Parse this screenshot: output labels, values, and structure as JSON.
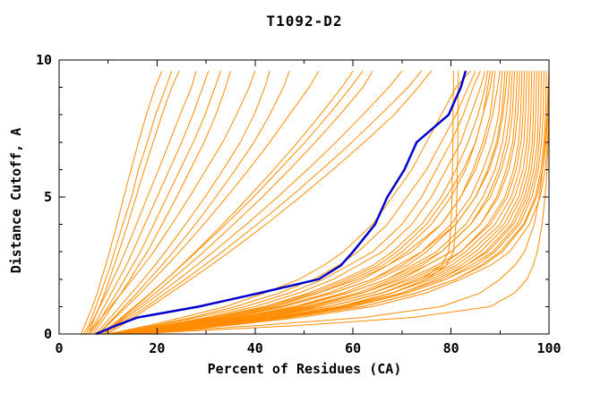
{
  "chart_data": {
    "type": "line",
    "title": "T1092-D2",
    "xlabel": "Percent of Residues (CA)",
    "ylabel": "Distance Cutoff, A",
    "xlim": [
      0,
      100
    ],
    "ylim": [
      0,
      10
    ],
    "x_major_ticks": [
      0,
      20,
      40,
      60,
      80,
      100
    ],
    "x_minor_step": 10,
    "y_major_ticks": [
      0,
      5,
      10
    ],
    "y_minor_step": 1,
    "grid": false,
    "legend": "none",
    "model_color": "#ff8c00",
    "highlight_color": "#0000cc",
    "frame_color": "#000000",
    "cutoff_levels": [
      0,
      0.3,
      0.6,
      1,
      1.5,
      2,
      2.5,
      3,
      4,
      5,
      6,
      7,
      8,
      9,
      9.6
    ],
    "highlight_curve": [
      7.5,
      11.5,
      16,
      28.5,
      41,
      53,
      57.5,
      60,
      64.5,
      67,
      70.5,
      73,
      79.5,
      82,
      83
    ],
    "model_curves": [
      [
        4.5,
        5.2,
        5.9,
        6.8,
        7.8,
        8.6,
        9.5,
        10.3,
        11.8,
        13.2,
        14.7,
        16.2,
        17.8,
        19.6,
        21
      ],
      [
        5,
        6,
        6.7,
        7.5,
        8.5,
        9.5,
        10.5,
        11.3,
        13,
        14.8,
        16.2,
        18,
        19.7,
        21.8,
        23
      ],
      [
        6,
        6.6,
        7.3,
        8.2,
        9.3,
        10.3,
        11.2,
        12.2,
        14,
        15.7,
        17.4,
        19.2,
        21,
        23,
        24.5
      ],
      [
        5.5,
        6.3,
        7.2,
        8.3,
        9.7,
        11,
        12.3,
        13.5,
        15.8,
        18,
        20.3,
        22.5,
        24.7,
        27,
        28
      ],
      [
        6,
        7,
        8,
        9.2,
        10.7,
        12.2,
        13.7,
        15,
        17.5,
        20,
        22.5,
        25,
        27.3,
        29.3,
        30.5
      ],
      [
        6.5,
        7.6,
        8.7,
        10,
        11.8,
        13.4,
        15,
        16.6,
        19.3,
        22,
        24.7,
        27.4,
        29.8,
        31.8,
        33
      ],
      [
        7,
        8.1,
        9.3,
        10.8,
        12.7,
        14.5,
        16.2,
        18,
        21,
        24,
        26.8,
        29.6,
        32,
        34,
        35
      ],
      [
        6,
        7.3,
        8.7,
        10.5,
        12.8,
        15,
        17.2,
        19.3,
        23,
        26.6,
        30,
        33.4,
        36.2,
        38.8,
        40
      ],
      [
        7.5,
        9,
        10.5,
        12.4,
        14.8,
        17.2,
        19.5,
        21.7,
        25.8,
        29.8,
        33.5,
        37,
        39.8,
        42,
        43
      ],
      [
        8,
        9.6,
        11.2,
        13.3,
        15.9,
        18.4,
        20.9,
        23.3,
        27.8,
        32,
        36,
        39.8,
        43,
        45.8,
        47
      ],
      [
        8,
        9.8,
        11.5,
        13.8,
        16.6,
        19.3,
        22,
        24.6,
        29.5,
        34.2,
        38.7,
        43,
        47,
        51,
        53
      ],
      [
        9,
        11,
        13,
        15.6,
        18.8,
        21.9,
        24.9,
        27.8,
        33.4,
        38.7,
        43.8,
        48.7,
        53.3,
        57.7,
        60
      ],
      [
        8.5,
        10.6,
        12.7,
        15.4,
        18.7,
        21.9,
        25,
        28,
        34,
        39.7,
        45,
        50.2,
        55,
        59.5,
        62
      ],
      [
        9,
        11.2,
        13.4,
        16.2,
        19.7,
        23,
        26.3,
        29.5,
        35.6,
        41.5,
        47,
        52.3,
        57.3,
        62,
        64
      ],
      [
        9,
        11.4,
        13.8,
        16.9,
        20.7,
        24.4,
        28,
        31.5,
        38.2,
        44.6,
        50.7,
        56.5,
        62,
        67.3,
        70
      ],
      [
        9.5,
        12,
        14.5,
        17.8,
        21.8,
        25.8,
        29.6,
        33.3,
        40.4,
        47.2,
        53.6,
        59.8,
        65.6,
        71.2,
        74
      ],
      [
        10,
        12.6,
        15.2,
        18.6,
        22.8,
        26.9,
        30.9,
        34.8,
        42.2,
        49.2,
        55.9,
        62.3,
        68.4,
        73.3,
        76
      ],
      [
        12,
        26,
        40,
        55,
        66,
        74,
        78,
        79.5,
        80,
        80.2,
        80.3,
        80.4,
        80.4,
        80.5,
        80.5
      ],
      [
        13,
        28,
        44,
        58,
        68,
        75,
        79,
        80.5,
        81,
        81.2,
        81.3,
        81.4,
        81.4,
        81.5,
        81.5
      ],
      [
        10,
        18,
        25,
        34,
        42,
        49,
        54,
        58,
        64,
        68,
        72,
        75,
        78,
        81,
        84
      ],
      [
        11,
        19,
        27,
        36,
        45,
        52,
        57,
        61,
        67,
        71,
        75,
        78,
        81,
        83.5,
        85
      ],
      [
        10,
        20,
        28,
        38,
        47,
        54,
        59,
        64,
        70,
        74,
        77,
        80,
        82.5,
        84.5,
        86
      ],
      [
        12,
        21,
        30,
        40,
        49,
        56,
        61,
        66,
        72,
        76,
        79,
        82,
        84,
        86,
        87
      ],
      [
        11,
        22,
        31,
        42,
        51,
        58,
        64,
        68,
        74,
        78,
        81,
        83.5,
        85.5,
        87,
        87.5
      ],
      [
        12,
        23,
        33,
        44,
        53,
        60,
        66,
        70,
        76,
        80,
        83,
        85,
        86.5,
        87.5,
        88
      ],
      [
        10,
        21,
        31,
        42,
        52,
        59,
        65,
        69,
        75,
        79,
        82.5,
        85,
        86.5,
        88,
        88.5
      ],
      [
        13,
        24,
        34,
        45,
        55,
        62,
        67,
        72,
        78,
        82,
        84.5,
        86.5,
        88,
        88.7,
        89
      ],
      [
        11,
        22,
        32,
        43,
        53,
        61,
        67,
        71,
        78,
        82,
        85,
        87,
        88.5,
        89.5,
        90
      ],
      [
        12,
        24,
        35,
        46,
        56,
        64,
        69,
        74,
        80,
        84,
        86.5,
        88.5,
        89.7,
        90.2,
        90.5
      ],
      [
        13,
        25,
        36,
        48,
        58,
        65,
        71,
        75,
        81,
        85,
        87.5,
        89.3,
        90.3,
        90.8,
        91
      ],
      [
        11,
        23,
        34,
        46,
        56,
        64,
        70,
        74,
        81,
        85,
        87.8,
        89.6,
        90.6,
        91.2,
        91.5
      ],
      [
        12,
        25,
        37,
        49,
        59,
        67,
        72,
        77,
        83,
        86.5,
        89,
        90.5,
        91.3,
        91.8,
        92
      ],
      [
        13,
        26,
        38,
        50,
        61,
        68,
        74,
        78,
        84,
        87.5,
        89.8,
        91.2,
        92,
        92.3,
        92.5
      ],
      [
        12,
        24,
        36,
        48,
        59,
        67,
        73,
        78,
        84,
        88,
        90.3,
        91.8,
        92.5,
        92.8,
        93
      ],
      [
        14,
        27,
        39,
        52,
        62,
        70,
        75,
        80,
        86,
        89.3,
        91.3,
        92.6,
        93.1,
        93.4,
        93.5
      ],
      [
        13,
        26,
        38,
        51,
        62,
        69,
        75,
        80,
        86,
        89.7,
        91.8,
        93,
        93.6,
        93.9,
        94
      ],
      [
        14,
        28,
        41,
        53,
        64,
        71,
        77,
        82,
        87.5,
        91,
        92.8,
        93.8,
        94.2,
        94.4,
        94.5
      ],
      [
        13,
        27,
        40,
        53,
        64,
        72,
        78,
        82,
        88,
        91.5,
        93.3,
        94.3,
        94.7,
        94.9,
        95
      ],
      [
        15,
        29,
        42,
        55,
        66,
        73,
        79,
        83,
        89,
        92.3,
        94,
        94.9,
        95.2,
        95.4,
        95.5
      ],
      [
        14,
        28,
        41,
        55,
        66,
        74,
        80,
        84,
        90,
        93,
        94.7,
        95.5,
        95.8,
        95.9,
        96
      ],
      [
        15,
        30,
        44,
        57,
        68,
        75,
        81,
        85,
        90.8,
        93.8,
        95.3,
        96,
        96.3,
        96.4,
        96.5
      ],
      [
        14,
        29,
        43,
        57,
        68,
        76,
        82,
        86,
        91.5,
        94.4,
        95.9,
        96.6,
        96.8,
        96.9,
        97
      ],
      [
        16,
        31,
        45,
        59,
        70,
        77,
        83,
        87,
        92.3,
        95,
        96.4,
        97,
        97.3,
        97.4,
        97.5
      ],
      [
        15,
        30,
        44,
        58,
        70,
        78,
        83,
        87.5,
        92.8,
        95.5,
        96.9,
        97.6,
        97.8,
        97.9,
        98
      ],
      [
        16,
        32,
        46,
        60,
        71,
        79,
        84,
        88.5,
        93.5,
        96,
        97.4,
        98,
        98.3,
        98.4,
        98.5
      ],
      [
        15,
        31,
        45,
        60,
        71,
        79,
        85,
        89,
        94,
        96.5,
        97.8,
        98.5,
        98.8,
        98.9,
        99
      ],
      [
        17,
        33,
        47,
        62,
        73,
        81,
        86,
        90,
        94.8,
        97.2,
        98.4,
        99,
        99.3,
        99.4,
        99.5
      ],
      [
        16,
        32,
        47,
        62,
        73,
        81,
        86.5,
        90.5,
        95,
        97.5,
        98.7,
        99.4,
        99.7,
        99.9,
        100
      ],
      [
        18,
        34,
        49,
        64,
        75,
        82,
        88,
        92,
        96,
        98.2,
        99.2,
        99.7,
        99.9,
        100,
        100
      ],
      [
        14,
        40,
        62,
        78,
        86,
        90,
        93,
        95,
        97,
        98,
        98.7,
        99.2,
        99.6,
        99.8,
        100
      ],
      [
        15,
        48,
        72,
        88,
        93,
        95.5,
        96.8,
        97.6,
        98.6,
        99.2,
        99.6,
        99.8,
        99.9,
        100,
        100
      ]
    ]
  }
}
